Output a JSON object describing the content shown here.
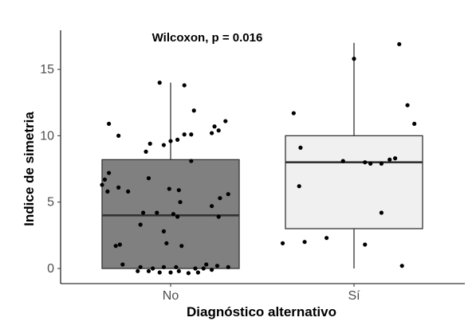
{
  "chart_data": {
    "type": "boxplot",
    "title": "",
    "xlabel": "Diagnóstico alternativo",
    "ylabel": "Indice de simetria",
    "annotation": "Wilcoxon, p = 0.016",
    "categories": [
      "No",
      "Sí"
    ],
    "ylim": [
      -1,
      18
    ],
    "yticks": [
      0,
      5,
      10,
      15
    ],
    "grid": false,
    "boxes": [
      {
        "category": "No",
        "min": 0,
        "q1": 0,
        "median": 4,
        "q3": 8.2,
        "max": 14,
        "fill": "#808080"
      },
      {
        "category": "Sí",
        "min": 0,
        "q1": 3,
        "median": 8,
        "q3": 10,
        "max": 17,
        "fill": "#f0f0f0"
      }
    ],
    "points": [
      {
        "category": "No",
        "jitter": -0.08,
        "y": 14.0
      },
      {
        "category": "No",
        "jitter": 0.1,
        "y": 13.8
      },
      {
        "category": "No",
        "jitter": 0.17,
        "y": 11.9
      },
      {
        "category": "No",
        "jitter": -0.45,
        "y": 10.9
      },
      {
        "category": "No",
        "jitter": 0.4,
        "y": 11.1
      },
      {
        "category": "No",
        "jitter": 0.32,
        "y": 10.7
      },
      {
        "category": "No",
        "jitter": 0.35,
        "y": 10.4
      },
      {
        "category": "No",
        "jitter": 0.3,
        "y": 10.2
      },
      {
        "category": "No",
        "jitter": 0.15,
        "y": 10.1
      },
      {
        "category": "No",
        "jitter": 0.1,
        "y": 10.1
      },
      {
        "category": "No",
        "jitter": 0.0,
        "y": 9.6
      },
      {
        "category": "No",
        "jitter": 0.05,
        "y": 9.7
      },
      {
        "category": "No",
        "jitter": -0.38,
        "y": 10.0
      },
      {
        "category": "No",
        "jitter": -0.15,
        "y": 9.4
      },
      {
        "category": "No",
        "jitter": -0.05,
        "y": 9.3
      },
      {
        "category": "No",
        "jitter": -0.18,
        "y": 8.8
      },
      {
        "category": "No",
        "jitter": 0.15,
        "y": 8.1
      },
      {
        "category": "No",
        "jitter": -0.45,
        "y": 7.2
      },
      {
        "category": "No",
        "jitter": -0.48,
        "y": 6.7
      },
      {
        "category": "No",
        "jitter": -0.5,
        "y": 6.3
      },
      {
        "category": "No",
        "jitter": -0.16,
        "y": 6.8
      },
      {
        "category": "No",
        "jitter": -0.38,
        "y": 6.1
      },
      {
        "category": "No",
        "jitter": -0.46,
        "y": 5.8
      },
      {
        "category": "No",
        "jitter": -0.31,
        "y": 5.8
      },
      {
        "category": "No",
        "jitter": -0.01,
        "y": 6.0
      },
      {
        "category": "No",
        "jitter": 0.06,
        "y": 5.9
      },
      {
        "category": "No",
        "jitter": 0.42,
        "y": 5.6
      },
      {
        "category": "No",
        "jitter": 0.36,
        "y": 5.3
      },
      {
        "category": "No",
        "jitter": 0.07,
        "y": 5.0
      },
      {
        "category": "No",
        "jitter": 0.3,
        "y": 4.7
      },
      {
        "category": "No",
        "jitter": -0.2,
        "y": 4.2
      },
      {
        "category": "No",
        "jitter": -0.1,
        "y": 4.2
      },
      {
        "category": "No",
        "jitter": 0.02,
        "y": 4.1
      },
      {
        "category": "No",
        "jitter": 0.05,
        "y": 3.9
      },
      {
        "category": "No",
        "jitter": -0.22,
        "y": 3.3
      },
      {
        "category": "No",
        "jitter": 0.35,
        "y": 3.9
      },
      {
        "category": "No",
        "jitter": -0.05,
        "y": 2.8
      },
      {
        "category": "No",
        "jitter": -0.37,
        "y": 1.8
      },
      {
        "category": "No",
        "jitter": -0.4,
        "y": 1.7
      },
      {
        "category": "No",
        "jitter": -0.03,
        "y": 1.9
      },
      {
        "category": "No",
        "jitter": 0.08,
        "y": 1.7
      },
      {
        "category": "No",
        "jitter": -0.35,
        "y": 0.3
      },
      {
        "category": "No",
        "jitter": 0.26,
        "y": 0.3
      },
      {
        "category": "No",
        "jitter": 0.34,
        "y": 0.2
      },
      {
        "category": "No",
        "jitter": -0.22,
        "y": 0.1
      },
      {
        "category": "No",
        "jitter": -0.13,
        "y": 0.0
      },
      {
        "category": "No",
        "jitter": -0.05,
        "y": 0.1
      },
      {
        "category": "No",
        "jitter": 0.04,
        "y": 0.1
      },
      {
        "category": "No",
        "jitter": 0.18,
        "y": 0.0
      },
      {
        "category": "No",
        "jitter": 0.24,
        "y": 0.0
      },
      {
        "category": "No",
        "jitter": 0.42,
        "y": 0.1
      },
      {
        "category": "No",
        "jitter": -0.24,
        "y": -0.2
      },
      {
        "category": "No",
        "jitter": -0.16,
        "y": -0.2
      },
      {
        "category": "No",
        "jitter": -0.08,
        "y": -0.3
      },
      {
        "category": "No",
        "jitter": 0.0,
        "y": -0.3
      },
      {
        "category": "No",
        "jitter": 0.06,
        "y": -0.2
      },
      {
        "category": "No",
        "jitter": 0.13,
        "y": -0.35
      },
      {
        "category": "No",
        "jitter": 0.2,
        "y": -0.3
      },
      {
        "category": "No",
        "jitter": 0.3,
        "y": -0.1
      },
      {
        "category": "Sí",
        "jitter": 0.33,
        "y": 16.9
      },
      {
        "category": "Sí",
        "jitter": 0.0,
        "y": 15.8
      },
      {
        "category": "Sí",
        "jitter": 0.39,
        "y": 12.3
      },
      {
        "category": "Sí",
        "jitter": -0.44,
        "y": 11.7
      },
      {
        "category": "Sí",
        "jitter": 0.44,
        "y": 10.9
      },
      {
        "category": "Sí",
        "jitter": -0.39,
        "y": 9.1
      },
      {
        "category": "Sí",
        "jitter": 0.3,
        "y": 8.3
      },
      {
        "category": "Sí",
        "jitter": 0.26,
        "y": 8.2
      },
      {
        "category": "Sí",
        "jitter": -0.08,
        "y": 8.1
      },
      {
        "category": "Sí",
        "jitter": 0.08,
        "y": 8.0
      },
      {
        "category": "Sí",
        "jitter": 0.12,
        "y": 7.9
      },
      {
        "category": "Sí",
        "jitter": 0.2,
        "y": 7.9
      },
      {
        "category": "Sí",
        "jitter": -0.4,
        "y": 6.2
      },
      {
        "category": "Sí",
        "jitter": 0.2,
        "y": 4.2
      },
      {
        "category": "Sí",
        "jitter": -0.2,
        "y": 2.3
      },
      {
        "category": "Sí",
        "jitter": -0.36,
        "y": 2.0
      },
      {
        "category": "Sí",
        "jitter": -0.52,
        "y": 1.9
      },
      {
        "category": "Sí",
        "jitter": 0.08,
        "y": 1.8
      },
      {
        "category": "Sí",
        "jitter": 0.35,
        "y": 0.2
      }
    ]
  }
}
